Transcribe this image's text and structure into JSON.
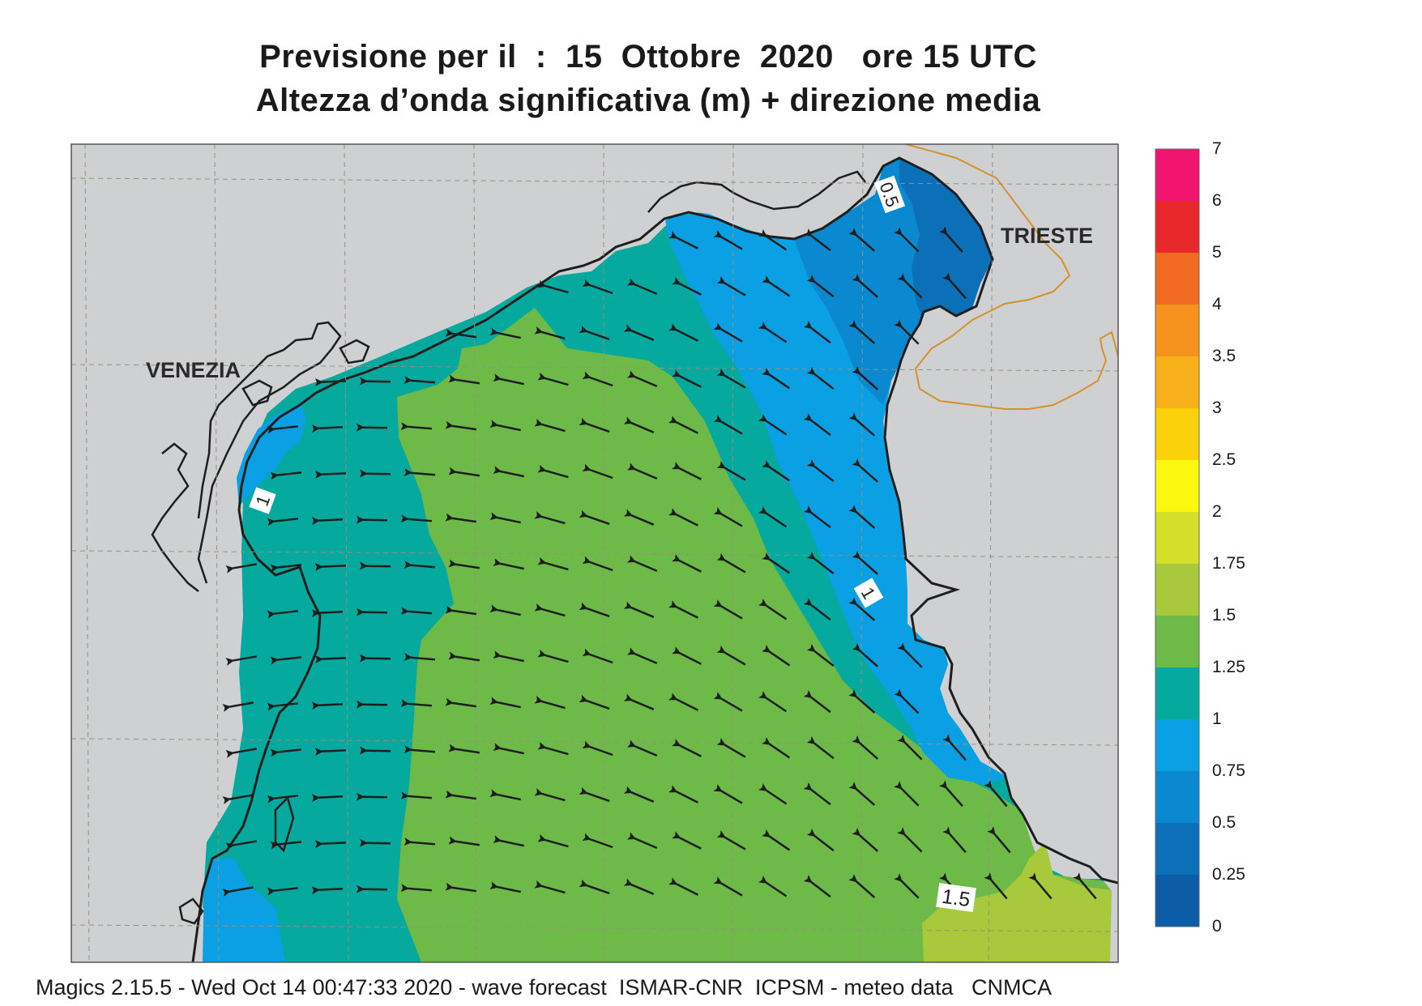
{
  "title": {
    "line1": "Previsione per il  :  15  Ottobre  2020   ore 15 UTC",
    "line2": "Altezza d’onda significativa (m) + direzione media"
  },
  "map": {
    "city_labels": [
      "VENEZIA",
      "TRIESTE"
    ],
    "contour_labels": [
      "0.5",
      "1",
      "1",
      "1.5"
    ],
    "wave_direction": "north-west"
  },
  "colorbar": {
    "labels": [
      "7",
      "6",
      "5",
      "4",
      "3.5",
      "3",
      "2.5",
      "2",
      "1.75",
      "1.5",
      "1.25",
      "1",
      "0.75",
      "0.5",
      "0.25",
      "0"
    ],
    "colors": [
      "#f0146e",
      "#e8282a",
      "#f06a22",
      "#f5921e",
      "#f8b01a",
      "#fbd209",
      "#fbf70e",
      "#d3df28",
      "#a7c93b",
      "#6eba49",
      "#05a99d",
      "#0aa0e3",
      "#0a89d0",
      "#0b70b8",
      "#0b5da7"
    ]
  },
  "colors": {
    "land": "#cfd0d2",
    "sea_deep": "#0b70b8",
    "sea_mid": "#0a89d0",
    "sea_light": "#0aa0e3",
    "teal": "#05a99d",
    "green": "#6eba49",
    "yellowgreen": "#a7c93b",
    "coast": "#1e1e1e",
    "border": "#d4922a"
  },
  "footer": "Magics 2.15.5 - Wed Oct 14 00:47:33 2020 - wave forecast  ISMAR-CNR  ICPSM - meteo data   CNMCA"
}
